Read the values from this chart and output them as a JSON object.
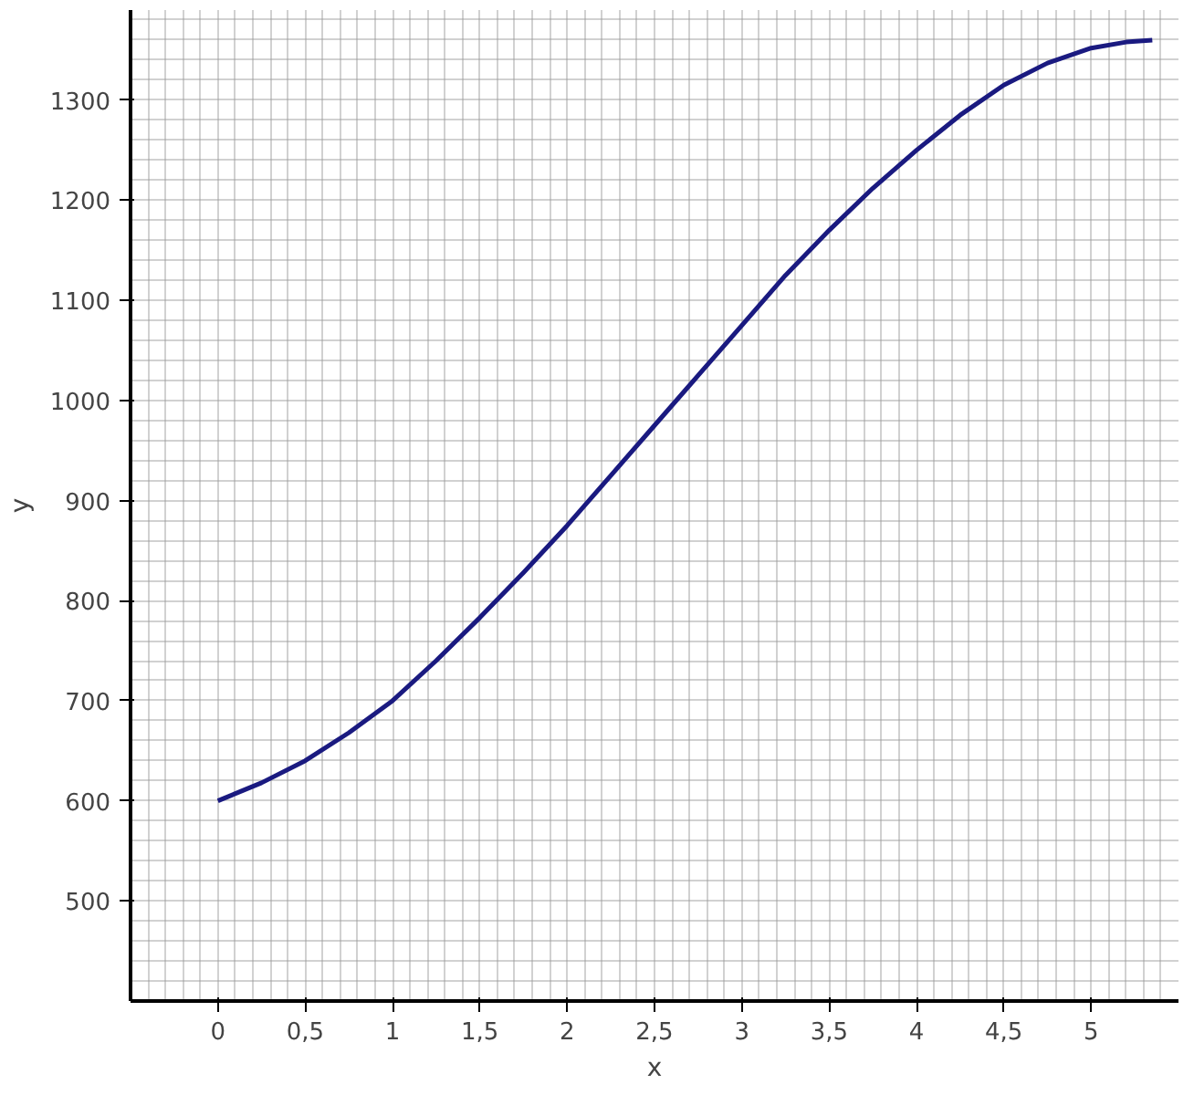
{
  "chart_data": {
    "type": "line",
    "xlabel": "x",
    "ylabel": "y",
    "x": [
      0,
      0.25,
      0.5,
      0.75,
      1,
      1.25,
      1.5,
      1.75,
      2,
      2.25,
      2.5,
      2.75,
      3,
      3.25,
      3.5,
      3.75,
      4,
      4.25,
      4.5,
      4.75,
      5,
      5.2,
      5.35
    ],
    "series": [
      {
        "color": "#1a1a80",
        "values": [
          600,
          618,
          640,
          668,
          700,
          740,
          783,
          828,
          875,
          925,
          975,
          1025,
          1075,
          1125,
          1170,
          1212,
          1250,
          1285,
          1315,
          1337,
          1352,
          1358,
          1360
        ]
      }
    ],
    "xlim": [
      -0.5,
      5.5
    ],
    "ylim": [
      400,
      1390
    ],
    "xticks": [
      0,
      {
        "value": 0.5,
        "label": "0,5"
      },
      1,
      {
        "value": 1.5,
        "label": "1,5"
      },
      2,
      {
        "value": 2.5,
        "label": "2,5"
      },
      3,
      {
        "value": 3.5,
        "label": "3,5"
      },
      4,
      {
        "value": 4.5,
        "label": "4,5"
      },
      5
    ],
    "yticks": [
      500,
      600,
      700,
      800,
      900,
      1000,
      1100,
      1200,
      1300
    ],
    "grid": true,
    "marker": "none",
    "line_style": "solid"
  }
}
